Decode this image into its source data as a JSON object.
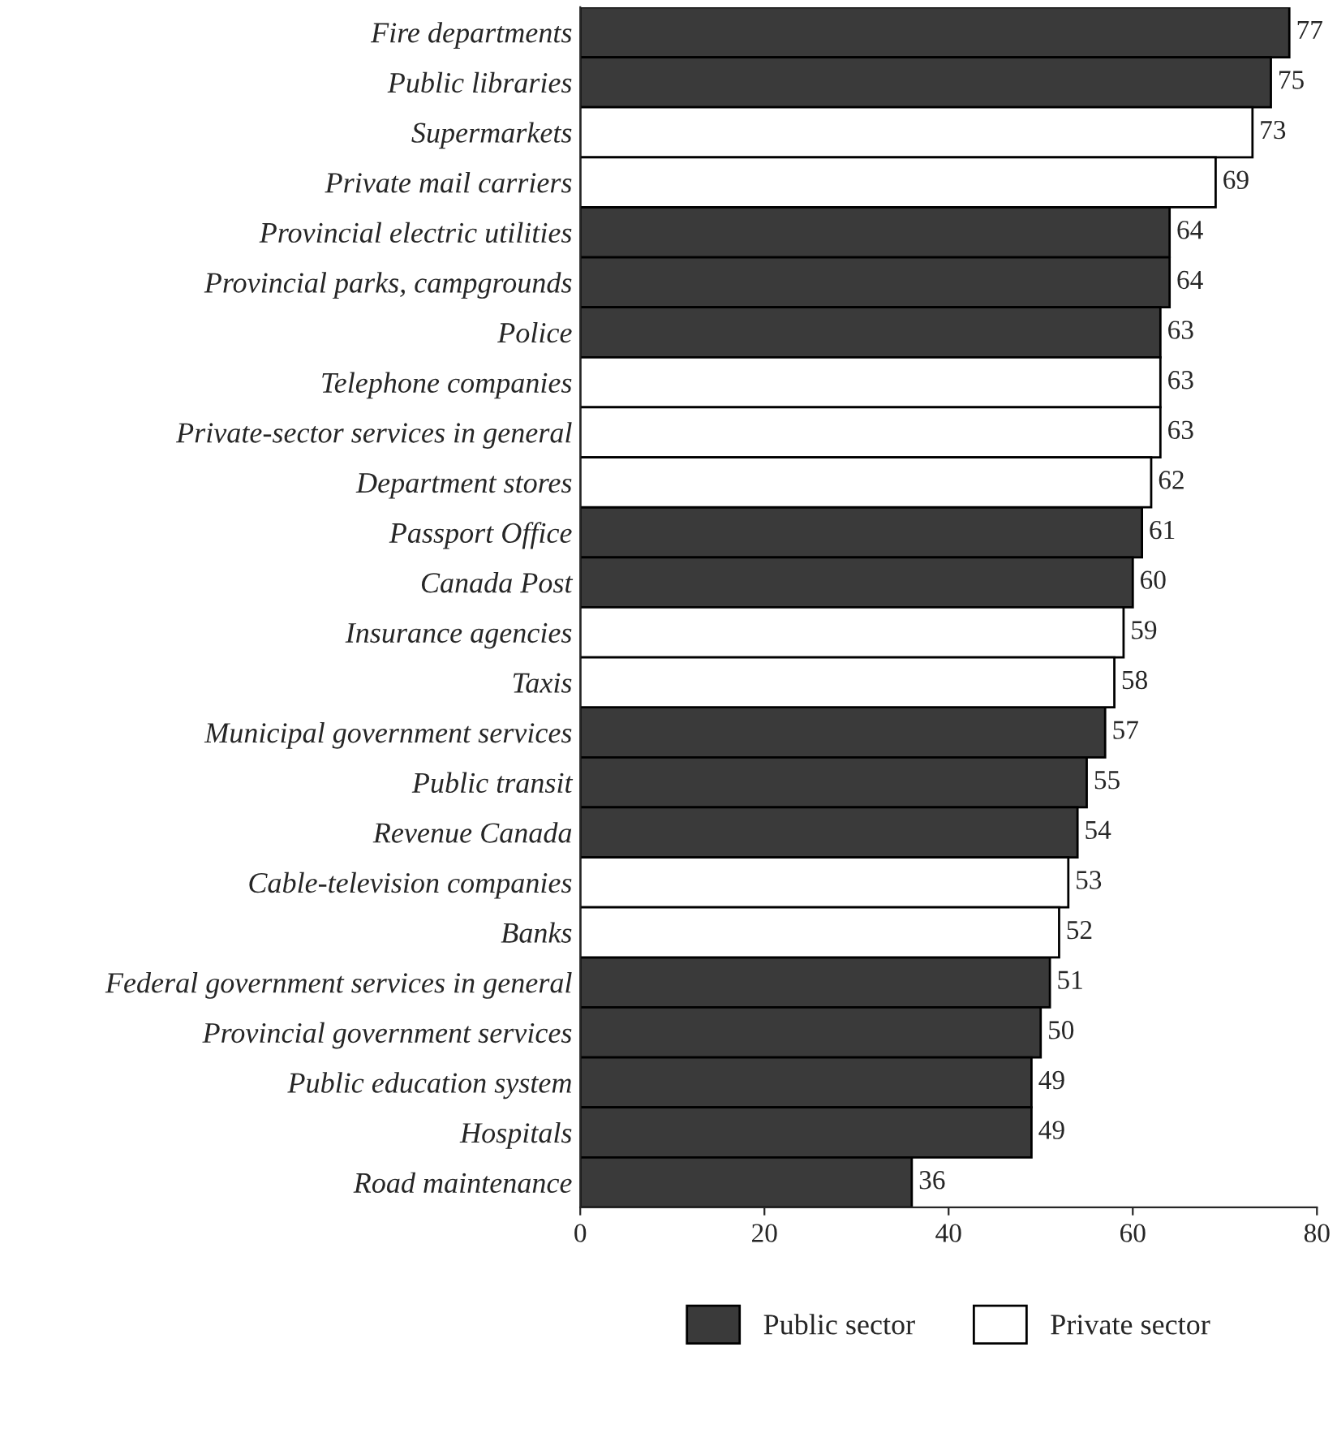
{
  "chart_data": {
    "type": "bar",
    "orientation": "horizontal",
    "categories": [
      "Fire departments",
      "Public libraries",
      "Supermarkets",
      "Private mail carriers",
      "Provincial electric utilities",
      "Provincial parks, campgrounds",
      "Police",
      "Telephone companies",
      "Private-sector services in general",
      "Department stores",
      "Passport Office",
      "Canada Post",
      "Insurance agencies",
      "Taxis",
      "Municipal government services",
      "Public transit",
      "Revenue Canada",
      "Cable-television companies",
      "Banks",
      "Federal government services in general",
      "Provincial government services",
      "Public education system",
      "Hospitals",
      "Road maintenance"
    ],
    "series": [
      {
        "name": "Public sector",
        "color": "#3a3a3a",
        "values": [
          77,
          75,
          null,
          null,
          64,
          64,
          63,
          null,
          null,
          null,
          61,
          60,
          null,
          null,
          57,
          55,
          54,
          null,
          null,
          51,
          50,
          49,
          49,
          36
        ]
      },
      {
        "name": "Private sector",
        "color": "#ffffff",
        "values": [
          null,
          null,
          73,
          69,
          null,
          null,
          null,
          63,
          63,
          62,
          null,
          null,
          59,
          58,
          null,
          null,
          null,
          53,
          52,
          null,
          null,
          null,
          null,
          null
        ]
      }
    ],
    "xlim": [
      0,
      80
    ],
    "xticks": [
      0,
      20,
      40,
      60,
      80
    ],
    "data_labels": true,
    "grid": false,
    "legend": "bottom"
  }
}
